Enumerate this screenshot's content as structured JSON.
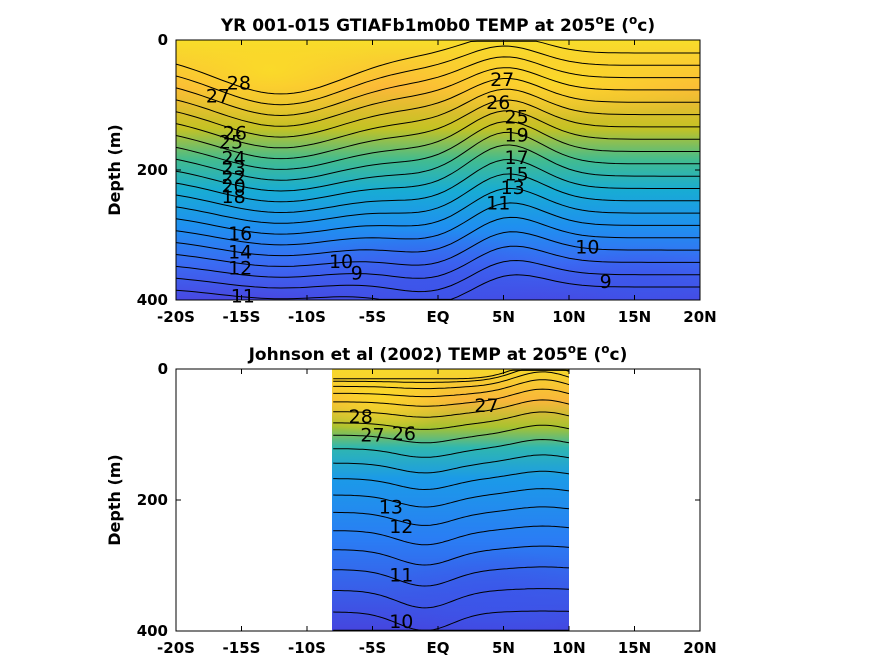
{
  "chart_data": [
    {
      "type": "contour",
      "title": "YR 001-015 GTIAFb1m0b0 TEMP at 205",
      "title_sup": "o",
      "title_tail": "E (",
      "title_sup2": "o",
      "title_end": "c)",
      "ylabel": "Depth (m)",
      "xticks": [
        "-20S",
        "-15S",
        "-10S",
        "-5S",
        "EQ",
        "5N",
        "10N",
        "15N",
        "20N"
      ],
      "xvalues": [
        -20,
        -15,
        -10,
        -5,
        0,
        5,
        10,
        15,
        20
      ],
      "yticks": [
        "0",
        "200",
        "400"
      ],
      "yvalues": [
        0,
        200,
        400
      ],
      "xlim": [
        -20,
        20
      ],
      "ylim": [
        0,
        400
      ],
      "data_xrange": [
        -20,
        20
      ],
      "surface_temp_max": 29,
      "deep_temp_min": 8,
      "contour_levels": [
        9,
        10,
        11,
        12,
        13,
        14,
        15,
        16,
        17,
        18,
        19,
        20,
        21,
        22,
        23,
        24,
        25,
        26,
        27,
        28
      ],
      "contour_labels": [
        {
          "text": "28",
          "x": -15.2,
          "y": 65
        },
        {
          "text": "27",
          "x": -16.8,
          "y": 85
        },
        {
          "text": "26",
          "x": -15.5,
          "y": 142
        },
        {
          "text": "25",
          "x": -15.8,
          "y": 156
        },
        {
          "text": "24",
          "x": -15.6,
          "y": 181
        },
        {
          "text": "23",
          "x": -15.6,
          "y": 196
        },
        {
          "text": "22",
          "x": -15.6,
          "y": 211
        },
        {
          "text": "20",
          "x": -15.6,
          "y": 224
        },
        {
          "text": "18",
          "x": -15.6,
          "y": 240
        },
        {
          "text": "16",
          "x": -15.1,
          "y": 297
        },
        {
          "text": "14",
          "x": -15.1,
          "y": 325
        },
        {
          "text": "12",
          "x": -15.1,
          "y": 350
        },
        {
          "text": "11",
          "x": -14.9,
          "y": 393
        },
        {
          "text": "27",
          "x": 4.9,
          "y": 60
        },
        {
          "text": "26",
          "x": 4.6,
          "y": 95
        },
        {
          "text": "25",
          "x": 6.0,
          "y": 118
        },
        {
          "text": "19",
          "x": 6.0,
          "y": 145
        },
        {
          "text": "17",
          "x": 6.0,
          "y": 180
        },
        {
          "text": "15",
          "x": 6.0,
          "y": 205
        },
        {
          "text": "13",
          "x": 5.7,
          "y": 226
        },
        {
          "text": "11",
          "x": 4.6,
          "y": 250
        },
        {
          "text": "10",
          "x": -7.4,
          "y": 340
        },
        {
          "text": "9",
          "x": -6.2,
          "y": 358
        },
        {
          "text": "10",
          "x": 11.4,
          "y": 318
        },
        {
          "text": "9",
          "x": 12.8,
          "y": 371
        }
      ]
    },
    {
      "type": "contour",
      "title": "Johnson et al (2002) TEMP at 205",
      "title_sup": "o",
      "title_tail": "E (",
      "title_sup2": "o",
      "title_end": "c)",
      "ylabel": "Depth (m)",
      "xticks": [
        "-20S",
        "-15S",
        "-10S",
        "-5S",
        "EQ",
        "5N",
        "10N",
        "15N",
        "20N"
      ],
      "xvalues": [
        -20,
        -15,
        -10,
        -5,
        0,
        5,
        10,
        15,
        20
      ],
      "yticks": [
        "0",
        "200",
        "400"
      ],
      "yvalues": [
        0,
        200,
        400
      ],
      "xlim": [
        -20,
        20
      ],
      "ylim": [
        0,
        400
      ],
      "data_xrange": [
        -8,
        10
      ],
      "surface_temp_max": 29,
      "deep_temp_min": 8,
      "contour_levels": [
        10,
        11,
        12,
        13,
        14,
        15,
        16,
        17,
        18,
        19,
        20,
        21,
        22,
        23,
        24,
        25,
        26,
        27,
        28
      ],
      "contour_labels": [
        {
          "text": "28",
          "x": -5.9,
          "y": 72
        },
        {
          "text": "27",
          "x": -5.0,
          "y": 100
        },
        {
          "text": "26",
          "x": -2.6,
          "y": 98
        },
        {
          "text": "27",
          "x": 3.7,
          "y": 55
        },
        {
          "text": "13",
          "x": -3.6,
          "y": 210
        },
        {
          "text": "12",
          "x": -2.8,
          "y": 240
        },
        {
          "text": "11",
          "x": -2.8,
          "y": 314
        },
        {
          "text": "10",
          "x": -2.8,
          "y": 385
        }
      ]
    }
  ]
}
